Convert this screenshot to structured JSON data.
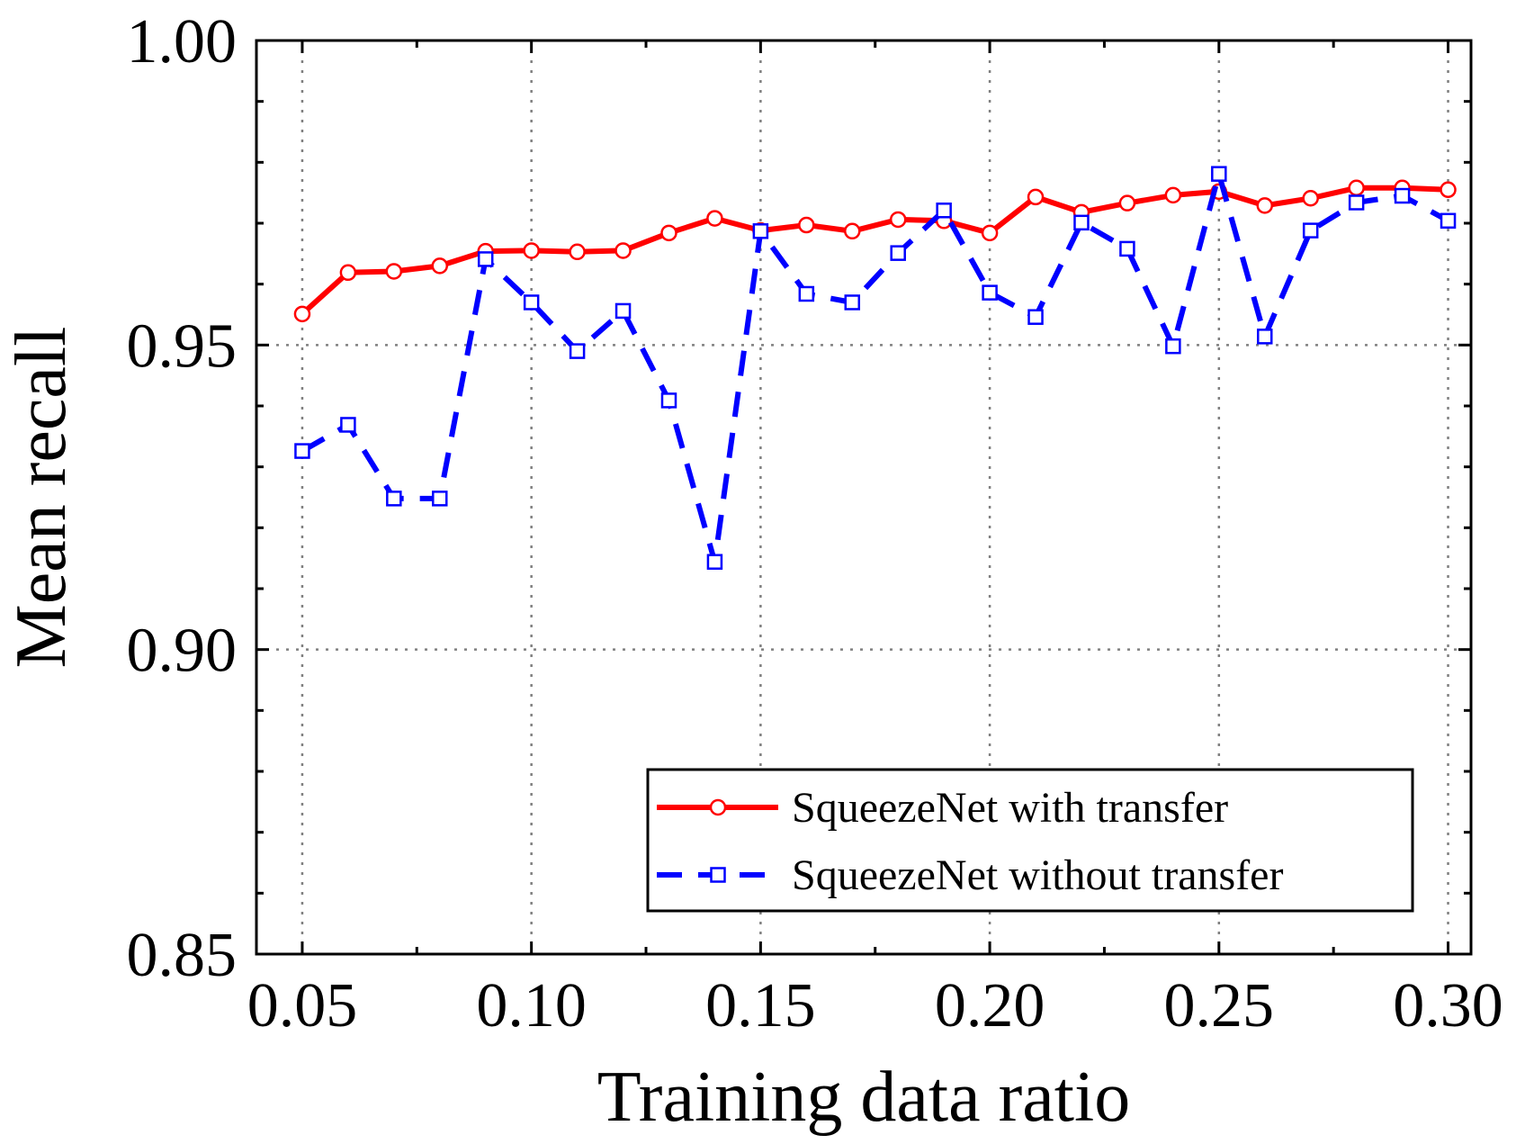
{
  "chart_data": {
    "type": "line",
    "xlabel": "Training data ratio",
    "ylabel": "Mean recall",
    "xlim": [
      0.04,
      0.305
    ],
    "ylim": [
      0.85,
      1.0
    ],
    "x_ticks": [
      "0.05",
      "0.10",
      "0.15",
      "0.20",
      "0.25",
      "0.30"
    ],
    "x_tick_values": [
      0.05,
      0.1,
      0.15,
      0.2,
      0.25,
      0.3
    ],
    "y_ticks": [
      "0.85",
      "0.90",
      "0.95",
      "1.00"
    ],
    "y_tick_values": [
      0.85,
      0.9,
      0.95,
      1.0
    ],
    "grid": true,
    "legend_position": "bottom-right",
    "x": [
      0.05,
      0.06,
      0.07,
      0.08,
      0.09,
      0.1,
      0.11,
      0.12,
      0.13,
      0.14,
      0.15,
      0.16,
      0.17,
      0.18,
      0.19,
      0.2,
      0.21,
      0.22,
      0.23,
      0.24,
      0.25,
      0.26,
      0.27,
      0.28,
      0.29,
      0.3
    ],
    "series": [
      {
        "name": "SqueezeNet with transfer",
        "color": "#ff0000",
        "marker": "circle",
        "dash": "solid",
        "values": [
          0.9551,
          0.9619,
          0.9621,
          0.963,
          0.9654,
          0.9655,
          0.9653,
          0.9655,
          0.9684,
          0.9708,
          0.9688,
          0.9697,
          0.9687,
          0.9706,
          0.9704,
          0.9684,
          0.9743,
          0.9718,
          0.9733,
          0.9746,
          0.9752,
          0.9729,
          0.9741,
          0.9758,
          0.9758,
          0.9755
        ]
      },
      {
        "name": "SqueezeNet without transfer",
        "color": "#0000ff",
        "marker": "square",
        "dash": "dashed",
        "values": [
          0.9326,
          0.9369,
          0.9248,
          0.9248,
          0.9641,
          0.957,
          0.949,
          0.9556,
          0.9409,
          0.9144,
          0.9687,
          0.9584,
          0.957,
          0.9651,
          0.9721,
          0.9586,
          0.9546,
          0.9701,
          0.9658,
          0.9498,
          0.9781,
          0.9514,
          0.9688,
          0.9734,
          0.9745,
          0.9704
        ]
      }
    ]
  }
}
